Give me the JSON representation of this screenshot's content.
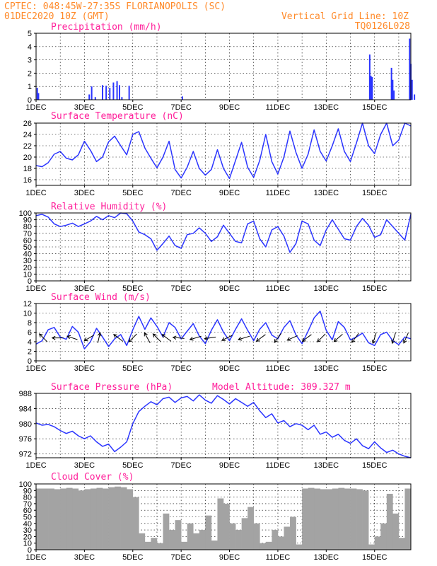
{
  "header": {
    "left_line1": "CPTEC:  048:45W-27:35S  FLORIANOPOLIS (SC)",
    "left_line2": "01DEC2020 10Z (GMT)",
    "right_line2": "Vertical Grid Line: 10Z",
    "right_line3": "TQ0126L028"
  },
  "x_labels": [
    "1DEC",
    "3DEC",
    "5DEC",
    "7DEC",
    "9DEC",
    "11DEC",
    "13DEC",
    "15DEC"
  ],
  "colors": {
    "header": "#ff8a2a",
    "title": "#ff1f9a",
    "series": "#2b35ff",
    "cloud": "#a3a3a3"
  },
  "chart_data": [
    {
      "type": "bar",
      "title": "Precipitation (mm/h)",
      "ylim": [
        0,
        5
      ],
      "yticks": [
        "0",
        "1",
        "2",
        "3",
        "4",
        "5"
      ],
      "xlim_days": [
        0,
        15.5
      ],
      "x": [
        0.05,
        0.1,
        2.2,
        2.3,
        2.45,
        2.75,
        2.9,
        3.05,
        3.2,
        3.35,
        3.45,
        3.55,
        3.85,
        6.05,
        13.8,
        13.85,
        13.9,
        14.7,
        14.75,
        14.8,
        15.45,
        15.5,
        15.55,
        15.65
      ],
      "values": [
        0.9,
        0.5,
        0.4,
        1.0,
        0.2,
        1.1,
        1.05,
        0.9,
        1.3,
        1.4,
        1.1,
        0.2,
        1.05,
        0.25,
        3.4,
        1.8,
        1.7,
        2.4,
        1.5,
        0.7,
        4.6,
        2.7,
        1.5,
        0.4
      ]
    },
    {
      "type": "line",
      "title": "Surface Temperature (nC)",
      "ylim": [
        15,
        26
      ],
      "yticks": [
        "16",
        "18",
        "20",
        "22",
        "24",
        "26"
      ],
      "x": [
        0,
        0.25,
        0.5,
        0.75,
        1.0,
        1.25,
        1.5,
        1.75,
        2.0,
        2.25,
        2.5,
        2.75,
        3.0,
        3.25,
        3.5,
        3.75,
        4.0,
        4.25,
        4.5,
        4.75,
        5.0,
        5.25,
        5.5,
        5.75,
        6.0,
        6.25,
        6.5,
        6.75,
        7.0,
        7.25,
        7.5,
        7.75,
        8.0,
        8.25,
        8.5,
        8.75,
        9.0,
        9.25,
        9.5,
        9.75,
        10.0,
        10.25,
        10.5,
        10.75,
        11.0,
        11.25,
        11.5,
        11.75,
        12.0,
        12.25,
        12.5,
        12.75,
        13.0,
        13.25,
        13.5,
        13.75,
        14.0,
        14.25,
        14.5,
        14.75,
        15.0,
        15.25,
        15.5
      ],
      "values": [
        18.5,
        18.3,
        19.0,
        20.5,
        21.0,
        19.8,
        19.5,
        20.4,
        22.8,
        21.2,
        19.2,
        20.0,
        22.7,
        23.7,
        22.0,
        20.4,
        24.0,
        24.5,
        21.6,
        19.8,
        18.1,
        20.0,
        22.8,
        17.8,
        16.3,
        18.2,
        21.0,
        18.0,
        16.8,
        17.8,
        21.3,
        18.0,
        16.2,
        19.4,
        22.6,
        18.2,
        16.4,
        19.4,
        24.0,
        19.2,
        17.0,
        20.0,
        24.6,
        20.8,
        18.0,
        20.5,
        24.8,
        21.0,
        19.3,
        22.0,
        25.0,
        21.0,
        19.2,
        22.5,
        26.0,
        22.0,
        20.6,
        24.0,
        26.0,
        22.0,
        23.0,
        26.0,
        25.5
      ]
    },
    {
      "type": "line",
      "title": "Relative Humidity (%)",
      "ylim": [
        0,
        100
      ],
      "yticks": [
        "0",
        "10",
        "20",
        "30",
        "40",
        "50",
        "60",
        "70",
        "80",
        "90",
        "100"
      ],
      "x": [
        0,
        0.25,
        0.5,
        0.75,
        1.0,
        1.25,
        1.5,
        1.75,
        2.0,
        2.25,
        2.5,
        2.75,
        3.0,
        3.25,
        3.5,
        3.75,
        4.0,
        4.25,
        4.5,
        4.75,
        5.0,
        5.25,
        5.5,
        5.75,
        6.0,
        6.25,
        6.5,
        6.75,
        7.0,
        7.25,
        7.5,
        7.75,
        8.0,
        8.25,
        8.5,
        8.75,
        9.0,
        9.25,
        9.5,
        9.75,
        10.0,
        10.25,
        10.5,
        10.75,
        11.0,
        11.25,
        11.5,
        11.75,
        12.0,
        12.25,
        12.5,
        12.75,
        13.0,
        13.25,
        13.5,
        13.75,
        14.0,
        14.25,
        14.5,
        14.75,
        15.0,
        15.25,
        15.5
      ],
      "values": [
        96,
        98,
        94,
        84,
        80,
        82,
        85,
        80,
        84,
        88,
        95,
        90,
        96,
        93,
        100,
        99,
        88,
        72,
        68,
        62,
        45,
        55,
        66,
        52,
        48,
        68,
        70,
        78,
        70,
        58,
        65,
        82,
        70,
        58,
        56,
        84,
        88,
        62,
        50,
        75,
        80,
        66,
        42,
        55,
        88,
        84,
        60,
        52,
        75,
        90,
        76,
        62,
        60,
        80,
        92,
        82,
        64,
        68,
        90,
        80,
        70,
        60,
        98
      ]
    },
    {
      "type": "line",
      "title": "Surface Wind (m/s)",
      "ylim": [
        0,
        12
      ],
      "yticks": [
        "0",
        "2",
        "4",
        "6",
        "8",
        "10",
        "12"
      ],
      "x": [
        0,
        0.25,
        0.5,
        0.75,
        1.0,
        1.25,
        1.5,
        1.75,
        2.0,
        2.25,
        2.5,
        2.75,
        3.0,
        3.25,
        3.5,
        3.75,
        4.0,
        4.25,
        4.5,
        4.75,
        5.0,
        5.25,
        5.5,
        5.75,
        6.0,
        6.25,
        6.5,
        6.75,
        7.0,
        7.25,
        7.5,
        7.75,
        8.0,
        8.25,
        8.5,
        8.75,
        9.0,
        9.25,
        9.5,
        9.75,
        10.0,
        10.25,
        10.5,
        10.75,
        11.0,
        11.25,
        11.5,
        11.75,
        12.0,
        12.25,
        12.5,
        12.75,
        13.0,
        13.25,
        13.5,
        13.75,
        14.0,
        14.25,
        14.5,
        14.75,
        15.0,
        15.25,
        15.5
      ],
      "values": [
        3.5,
        4.2,
        6.5,
        7.0,
        5.0,
        4.5,
        7.2,
        6.0,
        2.5,
        4.0,
        6.8,
        5.0,
        3.0,
        4.6,
        5.5,
        3.2,
        6.5,
        9.3,
        6.6,
        9.0,
        7.2,
        5.0,
        8.0,
        7.0,
        4.6,
        6.2,
        7.8,
        5.2,
        3.6,
        6.4,
        8.6,
        6.0,
        4.2,
        6.6,
        8.8,
        6.4,
        4.2,
        6.6,
        8.0,
        5.4,
        4.6,
        7.0,
        8.4,
        5.4,
        3.6,
        6.2,
        9.0,
        10.4,
        6.4,
        4.4,
        8.2,
        7.0,
        4.4,
        5.0,
        5.8,
        3.8,
        3.2,
        5.5,
        6.0,
        4.2,
        3.4,
        5.0,
        4.6
      ]
    },
    {
      "type": "line",
      "title": "Surface Pressure (hPa)",
      "subtitle": "Model Altitude: 309.327 m",
      "ylim": [
        971,
        988
      ],
      "yticks": [
        "972",
        "976",
        "980",
        "984",
        "988"
      ],
      "x": [
        0,
        0.25,
        0.5,
        0.75,
        1.0,
        1.25,
        1.5,
        1.75,
        2.0,
        2.25,
        2.5,
        2.75,
        3.0,
        3.25,
        3.5,
        3.75,
        4.0,
        4.25,
        4.5,
        4.75,
        5.0,
        5.25,
        5.5,
        5.75,
        6.0,
        6.25,
        6.5,
        6.75,
        7.0,
        7.25,
        7.5,
        7.75,
        8.0,
        8.25,
        8.5,
        8.75,
        9.0,
        9.25,
        9.5,
        9.75,
        10.0,
        10.25,
        10.5,
        10.75,
        11.0,
        11.25,
        11.5,
        11.75,
        12.0,
        12.25,
        12.5,
        12.75,
        13.0,
        13.25,
        13.5,
        13.75,
        14.0,
        14.25,
        14.5,
        14.75,
        15.0,
        15.25,
        15.5
      ],
      "values": [
        980.2,
        979.6,
        979.8,
        979.2,
        978.2,
        977.4,
        978.0,
        976.8,
        976.0,
        976.8,
        975.2,
        974.0,
        974.6,
        972.6,
        973.8,
        975.2,
        980.0,
        983.2,
        984.6,
        985.8,
        985.0,
        986.6,
        987.0,
        985.6,
        986.8,
        987.2,
        986.0,
        987.6,
        986.2,
        985.4,
        987.4,
        986.4,
        985.2,
        986.6,
        985.6,
        984.6,
        985.6,
        983.4,
        981.6,
        982.6,
        980.2,
        980.8,
        979.2,
        980.0,
        979.6,
        978.4,
        979.6,
        977.2,
        977.8,
        976.4,
        977.2,
        975.6,
        974.8,
        976.0,
        974.2,
        973.4,
        975.2,
        973.6,
        972.4,
        973.0,
        972.0,
        971.4,
        971.0
      ]
    },
    {
      "type": "area",
      "title": "Cloud Cover (%)",
      "ylim": [
        0,
        100
      ],
      "yticks": [
        "0",
        "10",
        "20",
        "30",
        "40",
        "50",
        "60",
        "70",
        "80",
        "90",
        "100"
      ],
      "x": [
        0,
        0.25,
        0.5,
        0.75,
        1.0,
        1.25,
        1.5,
        1.75,
        2.0,
        2.25,
        2.5,
        2.75,
        3.0,
        3.25,
        3.5,
        3.75,
        4.0,
        4.25,
        4.5,
        4.75,
        5.0,
        5.25,
        5.5,
        5.75,
        6.0,
        6.25,
        6.5,
        6.75,
        7.0,
        7.25,
        7.5,
        7.75,
        8.0,
        8.25,
        8.5,
        8.75,
        9.0,
        9.25,
        9.5,
        9.75,
        10.0,
        10.25,
        10.5,
        10.75,
        11.0,
        11.25,
        11.5,
        11.75,
        12.0,
        12.25,
        12.5,
        12.75,
        13.0,
        13.25,
        13.5,
        13.75,
        14.0,
        14.25,
        14.5,
        14.75,
        15.0,
        15.25,
        15.5
      ],
      "values": [
        93,
        93,
        93,
        92,
        93,
        94,
        93,
        90,
        92,
        93,
        94,
        93,
        95,
        96,
        95,
        92,
        80,
        25,
        12,
        18,
        10,
        55,
        30,
        45,
        12,
        40,
        25,
        30,
        52,
        14,
        78,
        70,
        40,
        30,
        48,
        65,
        40,
        10,
        12,
        30,
        20,
        35,
        50,
        8,
        93,
        94,
        93,
        92,
        92,
        93,
        94,
        93,
        93,
        92,
        90,
        8,
        20,
        40,
        85,
        55,
        18,
        93,
        92
      ]
    }
  ],
  "wind_arrows": [
    {
      "x": 0.3,
      "u": -0.7,
      "v": 0.7
    },
    {
      "x": 0.9,
      "u": -1,
      "v": 0
    },
    {
      "x": 1.5,
      "u": -0.9,
      "v": 0.3
    },
    {
      "x": 2.2,
      "u": -0.85,
      "v": -0.5
    },
    {
      "x": 2.6,
      "u": 0.2,
      "v": 0.9
    },
    {
      "x": 3.4,
      "u": -0.8,
      "v": 0.6
    },
    {
      "x": 4.0,
      "u": -0.7,
      "v": -0.7
    },
    {
      "x": 4.6,
      "u": -0.5,
      "v": 0.9
    },
    {
      "x": 5.0,
      "u": -0.7,
      "v": 0.7
    },
    {
      "x": 5.4,
      "u": -0.8,
      "v": 0.6
    },
    {
      "x": 5.9,
      "u": -1,
      "v": 0.1
    },
    {
      "x": 6.6,
      "u": -1,
      "v": -0.3
    },
    {
      "x": 7.2,
      "u": -1,
      "v": -0.15
    },
    {
      "x": 7.9,
      "u": -0.9,
      "v": -0.45
    },
    {
      "x": 8.6,
      "u": -1,
      "v": -0.3
    },
    {
      "x": 9.3,
      "u": -0.8,
      "v": -0.6
    },
    {
      "x": 10.0,
      "u": -0.6,
      "v": -0.8
    },
    {
      "x": 10.6,
      "u": -0.9,
      "v": -0.4
    },
    {
      "x": 11.2,
      "u": -0.8,
      "v": -0.6
    },
    {
      "x": 11.8,
      "u": -0.7,
      "v": -0.7
    },
    {
      "x": 12.5,
      "u": -0.75,
      "v": -0.65
    },
    {
      "x": 13.2,
      "u": -0.6,
      "v": -0.8
    },
    {
      "x": 14.0,
      "u": -0.3,
      "v": -0.95
    },
    {
      "x": 14.8,
      "u": -0.3,
      "v": -0.95
    },
    {
      "x": 15.3,
      "u": -0.4,
      "v": -0.9
    }
  ]
}
